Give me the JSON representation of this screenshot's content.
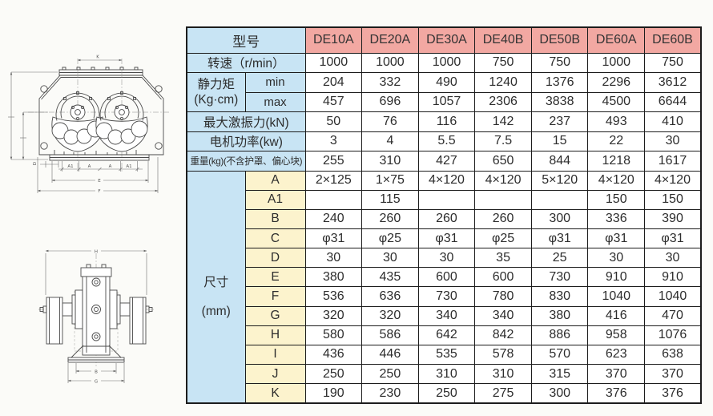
{
  "colors": {
    "header_pink": "#f2a8a2",
    "label_blue": "#c8e4f4",
    "dim_cream": "#fcf3cd",
    "border": "#1c1c1c"
  },
  "table": {
    "rows": [
      {
        "kind": "header",
        "label": "型号",
        "cells": [
          "DE10A",
          "DE20A",
          "DE30A",
          "DE40B",
          "DE50B",
          "DE60A",
          "DE60B"
        ]
      },
      {
        "kind": "spec",
        "label": "转速（r/min）",
        "cells": [
          "1000",
          "1000",
          "1000",
          "750",
          "750",
          "1000",
          "750"
        ]
      },
      {
        "kind": "minmax1",
        "group_line1": "静力矩",
        "group_line2": "(Kg·cm)",
        "sub": "min",
        "cells": [
          "204",
          "332",
          "490",
          "1240",
          "1376",
          "2296",
          "3612"
        ]
      },
      {
        "kind": "minmax2",
        "sub": "max",
        "cells": [
          "457",
          "696",
          "1057",
          "2306",
          "3838",
          "4500",
          "6644"
        ]
      },
      {
        "kind": "spec",
        "label": "最大激振力(kN)",
        "cells": [
          "50",
          "76",
          "116",
          "142",
          "237",
          "493",
          "410"
        ]
      },
      {
        "kind": "spec",
        "label": "电机功率(kw)",
        "cells": [
          "3",
          "4",
          "5.5",
          "7.5",
          "15",
          "22",
          "30"
        ]
      },
      {
        "kind": "spec",
        "label": "重量(kg)(不含护罩、偏心块)",
        "small": true,
        "cells": [
          "255",
          "310",
          "427",
          "650",
          "844",
          "1218",
          "1617"
        ]
      },
      {
        "kind": "dim1",
        "group_line1": "尺寸",
        "group_line2": "(mm)",
        "letter": "A",
        "cells": [
          "2×125",
          "1×75",
          "4×120",
          "4×120",
          "5×120",
          "4×120",
          "4×120"
        ]
      },
      {
        "kind": "dim",
        "letter": "A1",
        "cells": [
          "",
          "115",
          "",
          "",
          "",
          "150",
          "150"
        ]
      },
      {
        "kind": "dim",
        "letter": "B",
        "cells": [
          "240",
          "260",
          "260",
          "260",
          "300",
          "336",
          "390"
        ]
      },
      {
        "kind": "dim",
        "letter": "C",
        "cells": [
          "φ31",
          "φ25",
          "φ31",
          "φ25",
          "φ31",
          "φ31",
          "φ31"
        ]
      },
      {
        "kind": "dim",
        "letter": "D",
        "cells": [
          "30",
          "30",
          "30",
          "35",
          "25",
          "30",
          "30"
        ]
      },
      {
        "kind": "dim",
        "letter": "E",
        "cells": [
          "380",
          "435",
          "600",
          "600",
          "730",
          "910",
          "910"
        ]
      },
      {
        "kind": "dim",
        "letter": "F",
        "cells": [
          "536",
          "636",
          "730",
          "780",
          "830",
          "1040",
          "1040"
        ]
      },
      {
        "kind": "dim",
        "letter": "G",
        "cells": [
          "320",
          "320",
          "340",
          "340",
          "380",
          "416",
          "470"
        ]
      },
      {
        "kind": "dim",
        "letter": "H",
        "cells": [
          "580",
          "586",
          "642",
          "842",
          "886",
          "958",
          "1076"
        ]
      },
      {
        "kind": "dim",
        "letter": "I",
        "cells": [
          "436",
          "446",
          "535",
          "578",
          "570",
          "623",
          "638"
        ]
      },
      {
        "kind": "dim",
        "letter": "J",
        "cells": [
          "250",
          "250",
          "310",
          "310",
          "315",
          "370",
          "370"
        ]
      },
      {
        "kind": "dim",
        "letter": "K",
        "cells": [
          "190",
          "230",
          "250",
          "275",
          "300",
          "376",
          "376"
        ]
      }
    ]
  },
  "drawings": {
    "front": {
      "labels": {
        "k": "K",
        "a1_left": "A1",
        "a_left": "A",
        "a_right": "A",
        "a1_right": "A1",
        "e": "E",
        "f": "F",
        "d": "D"
      }
    },
    "side": {
      "labels": {
        "h": "H",
        "b": "B",
        "g": "G"
      }
    }
  }
}
